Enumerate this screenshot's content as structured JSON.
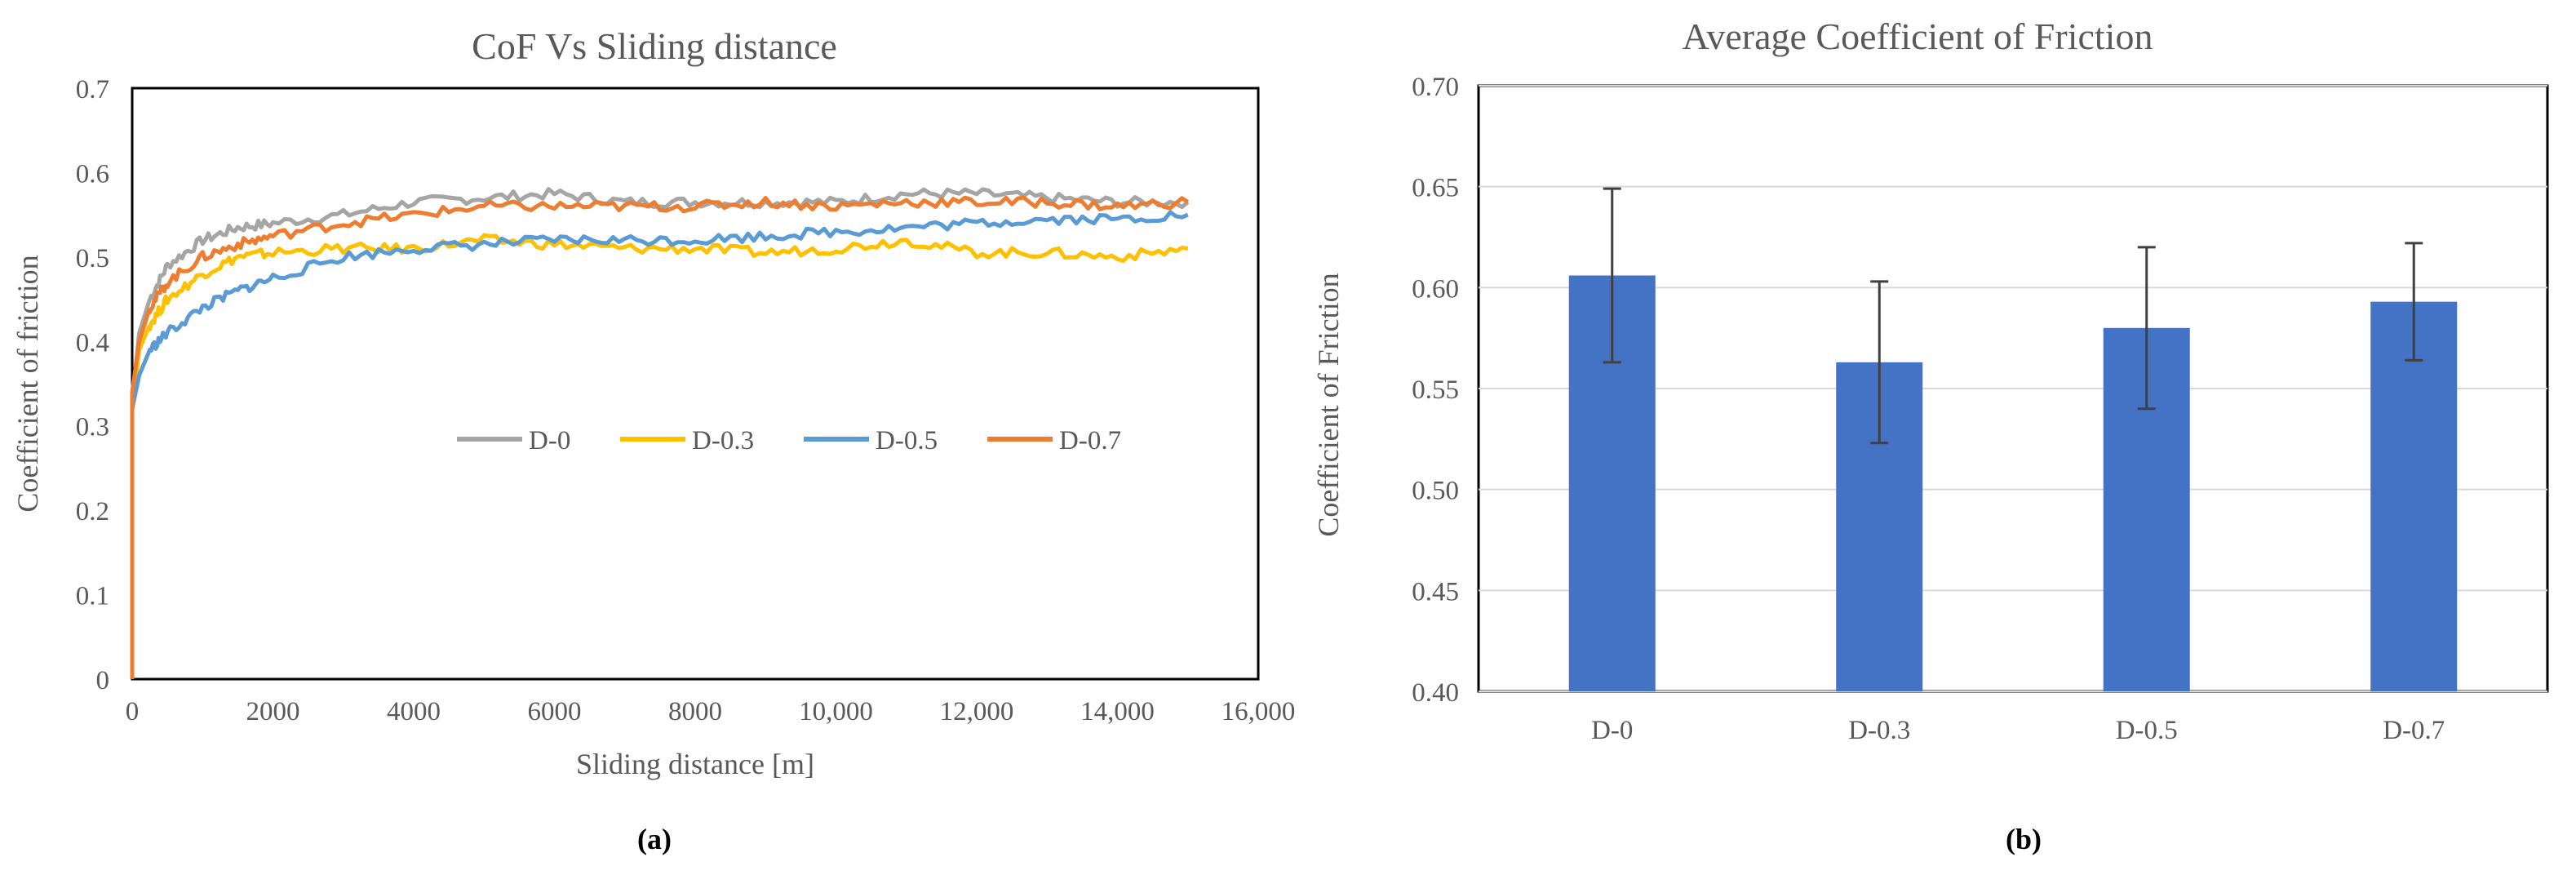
{
  "chart_data": [
    {
      "type": "line",
      "panel_label": "(a)",
      "title": "CoF Vs Sliding distance",
      "xlabel": "Sliding distance [m]",
      "ylabel": "Coefficient of friction",
      "xlim": [
        0,
        16000
      ],
      "ylim": [
        0,
        0.7
      ],
      "x_tick_labels": [
        "0",
        "2000",
        "4000",
        "6000",
        "8000",
        "10,000",
        "12,000",
        "14,000",
        "16,000"
      ],
      "y_tick_labels": [
        "0",
        "0.1",
        "0.2",
        "0.3",
        "0.4",
        "0.5",
        "0.6",
        "0.7"
      ],
      "grid": false,
      "legend_position": "center-right",
      "series": [
        {
          "name": "D-0",
          "color": "#a5a5a5",
          "x": [
            0,
            100,
            250,
            500,
            1000,
            1500,
            2000,
            3000,
            4000,
            5000,
            6000,
            7000,
            8000,
            9000,
            10000,
            11000,
            12000,
            13000,
            14000,
            15000
          ],
          "y": [
            0.33,
            0.41,
            0.45,
            0.49,
            0.52,
            0.535,
            0.54,
            0.55,
            0.565,
            0.57,
            0.575,
            0.565,
            0.565,
            0.565,
            0.565,
            0.575,
            0.575,
            0.57,
            0.565,
            0.565
          ]
        },
        {
          "name": "D-0.3",
          "color": "#ffc000",
          "x": [
            0,
            100,
            250,
            500,
            1000,
            1500,
            2000,
            3000,
            4000,
            5000,
            6000,
            7000,
            8000,
            9000,
            10000,
            11000,
            12000,
            13000,
            14000,
            15000
          ],
          "y": [
            0.32,
            0.39,
            0.42,
            0.45,
            0.48,
            0.5,
            0.505,
            0.51,
            0.51,
            0.52,
            0.515,
            0.51,
            0.51,
            0.505,
            0.51,
            0.52,
            0.505,
            0.505,
            0.5,
            0.51
          ]
        },
        {
          "name": "D-0.5",
          "color": "#5b9bd5",
          "x": [
            0,
            100,
            250,
            500,
            1000,
            1500,
            2000,
            3000,
            4000,
            5000,
            6000,
            7000,
            8000,
            9000,
            10000,
            11000,
            12000,
            13000,
            14000,
            15000
          ],
          "y": [
            0.32,
            0.36,
            0.39,
            0.41,
            0.44,
            0.46,
            0.475,
            0.5,
            0.51,
            0.515,
            0.52,
            0.52,
            0.52,
            0.525,
            0.53,
            0.535,
            0.54,
            0.545,
            0.545,
            0.55
          ]
        },
        {
          "name": "D-0.7",
          "color": "#ed7d31",
          "x": [
            0,
            100,
            250,
            500,
            1000,
            1500,
            2000,
            3000,
            4000,
            5000,
            6000,
            7000,
            8000,
            9000,
            10000,
            11000,
            12000,
            13000,
            14000,
            15000
          ],
          "y": [
            0.34,
            0.4,
            0.44,
            0.47,
            0.5,
            0.515,
            0.525,
            0.54,
            0.55,
            0.56,
            0.56,
            0.56,
            0.56,
            0.565,
            0.56,
            0.565,
            0.565,
            0.565,
            0.56,
            0.565
          ]
        }
      ]
    },
    {
      "type": "bar",
      "panel_label": "(b)",
      "title": "Average  Coefficient  of Friction",
      "xlabel": "",
      "ylabel": "Coefficient of Friction",
      "ylim": [
        0.4,
        0.7
      ],
      "y_tick_labels": [
        "0.40",
        "0.45",
        "0.50",
        "0.55",
        "0.60",
        "0.65",
        "0.70"
      ],
      "grid": true,
      "bar_color": "#4472c4",
      "categories": [
        "D-0",
        "D-0.3",
        "D-0.5",
        "D-0.7"
      ],
      "values": [
        0.606,
        0.563,
        0.58,
        0.593
      ],
      "errors": [
        0.043,
        0.04,
        0.04,
        0.029
      ]
    }
  ]
}
